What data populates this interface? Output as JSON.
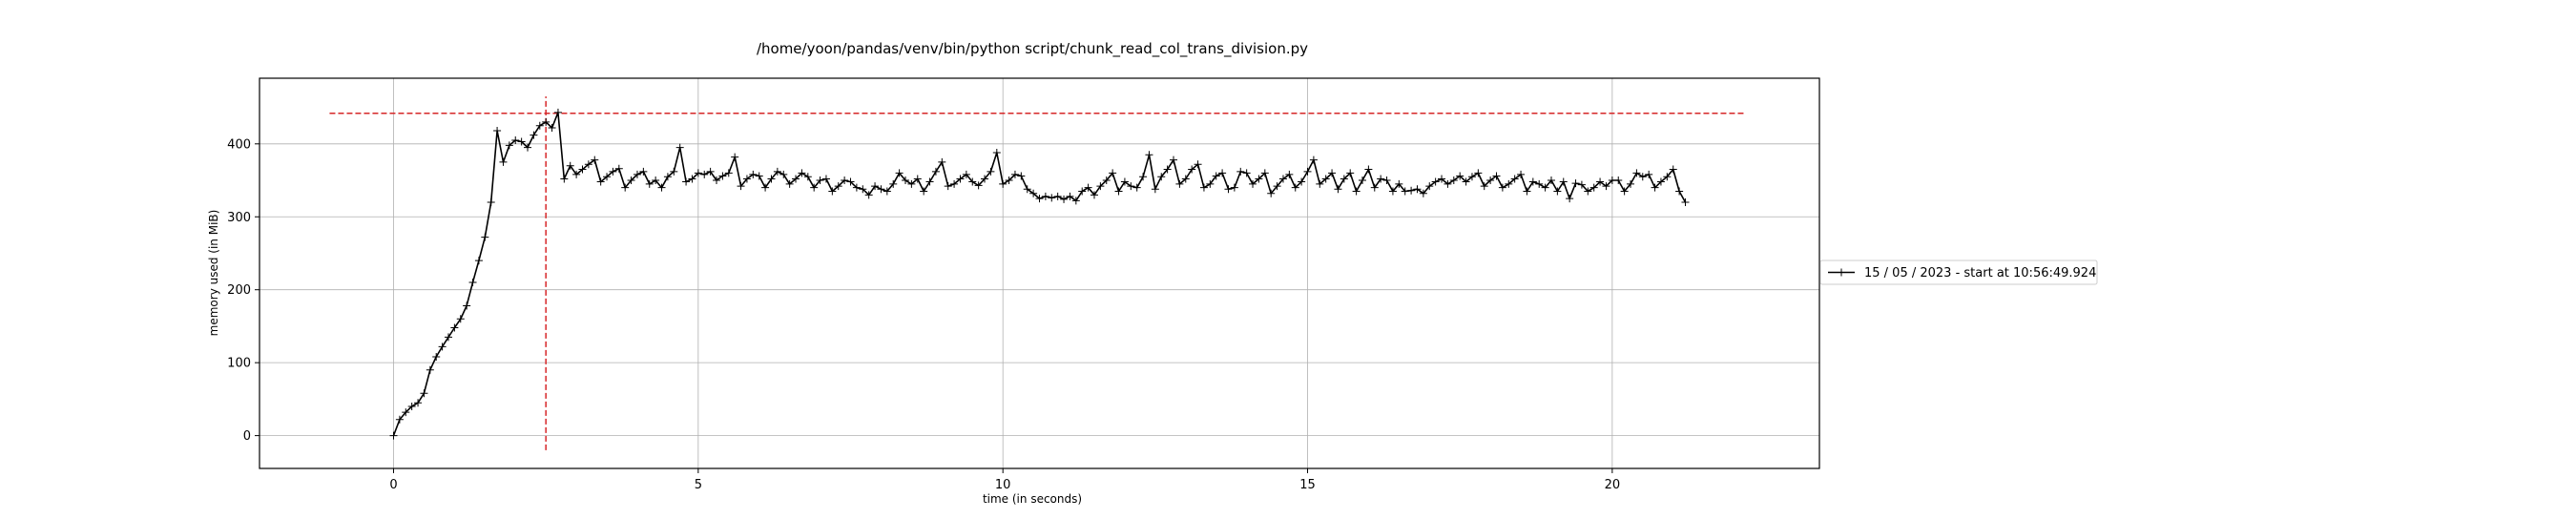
{
  "chart_data": {
    "type": "line",
    "title": "/home/yoon/pandas/venv/bin/python script/chunk_read_col_trans_division.py",
    "xlabel": "time (in seconds)",
    "ylabel": "memory used (in MiB)",
    "xlim": [
      -2.2,
      23.4
    ],
    "ylim": [
      -45,
      490
    ],
    "xticks": [
      0,
      5,
      10,
      15,
      20
    ],
    "yticks": [
      0,
      100,
      200,
      300,
      400
    ],
    "grid": true,
    "legend_placement": "outside-right",
    "series": [
      {
        "name": "15 / 05 / 2023 - start at 10:56:49.924",
        "color": "#000000",
        "marker": "+",
        "x": [
          0,
          0.1,
          0.2,
          0.3,
          0.4,
          0.5,
          0.6,
          0.7,
          0.8,
          0.9,
          1,
          1.1,
          1.2,
          1.3,
          1.4,
          1.5,
          1.6,
          1.7,
          1.8,
          1.9,
          2,
          2.1,
          2.2,
          2.3,
          2.4,
          2.5,
          2.6,
          2.7,
          2.8,
          2.9,
          3,
          3.1,
          3.2,
          3.3,
          3.4,
          3.5,
          3.6,
          3.7,
          3.8,
          3.9,
          4,
          4.1,
          4.2,
          4.3,
          4.4,
          4.5,
          4.6,
          4.7,
          4.8,
          4.9,
          5,
          5.1,
          5.2,
          5.3,
          5.4,
          5.5,
          5.6,
          5.7,
          5.8,
          5.9,
          6,
          6.1,
          6.2,
          6.3,
          6.4,
          6.5,
          6.6,
          6.7,
          6.8,
          6.9,
          7,
          7.1,
          7.2,
          7.3,
          7.4,
          7.5,
          7.6,
          7.7,
          7.8,
          7.9,
          8,
          8.1,
          8.2,
          8.3,
          8.4,
          8.5,
          8.6,
          8.7,
          8.8,
          8.9,
          9,
          9.1,
          9.2,
          9.3,
          9.4,
          9.5,
          9.6,
          9.7,
          9.8,
          9.9,
          10,
          10.1,
          10.2,
          10.3,
          10.4,
          10.5,
          10.6,
          10.7,
          10.8,
          10.9,
          11,
          11.1,
          11.2,
          11.3,
          11.4,
          11.5,
          11.6,
          11.7,
          11.8,
          11.9,
          12,
          12.1,
          12.2,
          12.3,
          12.4,
          12.5,
          12.6,
          12.7,
          12.8,
          12.9,
          13,
          13.1,
          13.2,
          13.3,
          13.4,
          13.5,
          13.6,
          13.7,
          13.8,
          13.9,
          14,
          14.1,
          14.2,
          14.3,
          14.4,
          14.5,
          14.6,
          14.7,
          14.8,
          14.9,
          15,
          15.1,
          15.2,
          15.3,
          15.4,
          15.5,
          15.6,
          15.7,
          15.8,
          15.9,
          16,
          16.1,
          16.2,
          16.3,
          16.4,
          16.5,
          16.6,
          16.7,
          16.8,
          16.9,
          17,
          17.1,
          17.2,
          17.3,
          17.4,
          17.5,
          17.6,
          17.7,
          17.8,
          17.9,
          18,
          18.1,
          18.2,
          18.3,
          18.4,
          18.5,
          18.6,
          18.7,
          18.8,
          18.9,
          19,
          19.1,
          19.2,
          19.3,
          19.4,
          19.5,
          19.6,
          19.7,
          19.8,
          19.9,
          20,
          20.1,
          20.2,
          20.3,
          20.4,
          20.5,
          20.6,
          20.7,
          20.8,
          20.9,
          21,
          21.1,
          21.2
        ],
        "values": [
          0,
          22,
          32,
          40,
          45,
          58,
          90,
          108,
          122,
          135,
          148,
          160,
          178,
          210,
          240,
          272,
          320,
          418,
          375,
          398,
          405,
          403,
          395,
          412,
          425,
          430,
          422,
          443,
          352,
          370,
          358,
          365,
          372,
          378,
          348,
          355,
          362,
          366,
          340,
          350,
          358,
          362,
          345,
          350,
          340,
          355,
          362,
          395,
          348,
          352,
          360,
          358,
          362,
          350,
          356,
          360,
          382,
          342,
          352,
          358,
          356,
          340,
          352,
          362,
          358,
          345,
          352,
          360,
          355,
          340,
          350,
          352,
          335,
          342,
          350,
          348,
          340,
          338,
          330,
          342,
          338,
          335,
          345,
          360,
          350,
          345,
          352,
          335,
          348,
          362,
          375,
          342,
          345,
          352,
          358,
          348,
          343,
          352,
          362,
          388,
          345,
          350,
          358,
          356,
          338,
          332,
          325,
          328,
          326,
          328,
          324,
          328,
          322,
          335,
          340,
          330,
          342,
          350,
          360,
          335,
          348,
          342,
          340,
          355,
          385,
          338,
          355,
          365,
          378,
          345,
          352,
          365,
          372,
          340,
          345,
          356,
          360,
          338,
          340,
          362,
          360,
          345,
          352,
          360,
          332,
          342,
          352,
          358,
          340,
          348,
          362,
          378,
          345,
          352,
          360,
          338,
          352,
          360,
          335,
          350,
          365,
          340,
          352,
          350,
          335,
          345,
          335,
          336,
          338,
          332,
          342,
          348,
          352,
          345,
          350,
          356,
          348,
          355,
          360,
          342,
          350,
          356,
          340,
          345,
          352,
          358,
          335,
          348,
          345,
          340,
          350,
          335,
          348,
          325,
          346,
          344,
          335,
          340,
          348,
          342,
          350,
          350,
          335,
          345,
          360,
          355,
          358,
          340,
          348,
          355,
          365,
          335,
          320
        ]
      }
    ],
    "annotations": {
      "max_memory_mib": 442,
      "max_memory_time_s": 2.5,
      "hline_x_range": [
        -1.05,
        22.2
      ],
      "vline_y_range": [
        -20,
        465
      ],
      "line_color": "#d62728"
    }
  }
}
